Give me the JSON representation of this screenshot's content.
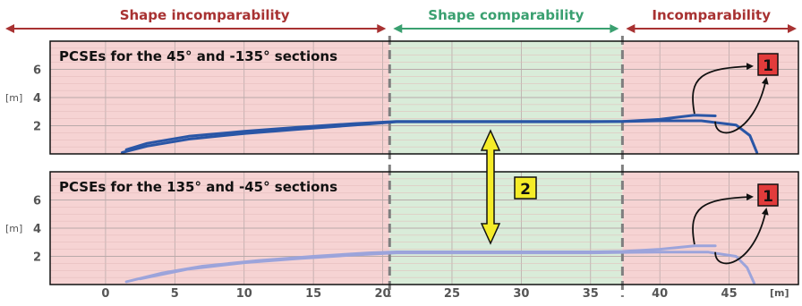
{
  "chart_data": {
    "type": "line",
    "x_unit": "[m]",
    "y_unit": "[m]",
    "xlim": [
      -4,
      50
    ],
    "ylim": [
      0,
      8
    ],
    "x_ticks": [
      0,
      5,
      10,
      15,
      20,
      25,
      30,
      35,
      40,
      45
    ],
    "y_ticks": [
      2,
      4,
      6
    ],
    "grid": true,
    "regions": [
      {
        "label": "Shape incomparability",
        "x_range": [
          -4,
          20.5
        ],
        "color": "#f6d3d3",
        "arrow_color": "#a83232"
      },
      {
        "label": "Shape comparability",
        "x_range": [
          20.5,
          37.3
        ],
        "color": "#d9ecd9",
        "arrow_color": "#3aa070"
      },
      {
        "label": "Incomparability",
        "x_range": [
          37.3,
          50
        ],
        "color": "#f6d3d3",
        "arrow_color": "#a83232"
      }
    ],
    "markers": [
      {
        "id": "marker-1-top",
        "label": "1",
        "color": "#e23b3b"
      },
      {
        "id": "marker-1-bottom",
        "label": "1",
        "color": "#e23b3b"
      },
      {
        "id": "marker-2",
        "label": "2",
        "color": "#f5ec28"
      }
    ],
    "panels": [
      {
        "title": "PCSEs for the 45° and -135° sections",
        "color": "#2a56a6",
        "series": [
          {
            "x": [
              1.5,
              3,
              6,
              10,
              14,
              18,
              21,
              25,
              30,
              35,
              37.3,
              40,
              43,
              45.5,
              46.5,
              47
            ],
            "y": [
              0.3,
              0.75,
              1.25,
              1.6,
              1.9,
              2.15,
              2.3,
              2.3,
              2.3,
              2.3,
              2.3,
              2.35,
              2.35,
              2.05,
              1.3,
              0.1
            ]
          },
          {
            "x": [
              1.2,
              3,
              6,
              10,
              14,
              18,
              21,
              25,
              30,
              35,
              37.3,
              40,
              42.5,
              44
            ],
            "y": [
              0.1,
              0.55,
              1.05,
              1.45,
              1.75,
              2.05,
              2.28,
              2.28,
              2.28,
              2.28,
              2.3,
              2.45,
              2.75,
              2.7
            ]
          }
        ]
      },
      {
        "title": "PCSEs for the 135° and -45° sections",
        "color": "#9ca4db",
        "series": [
          {
            "x": [
              2.5,
              6,
              10,
              14,
              18,
              21,
              25,
              30,
              35,
              37.3,
              40,
              43.5,
              45.5,
              46.3,
              46.8
            ],
            "y": [
              0.4,
              1.1,
              1.55,
              1.85,
              2.1,
              2.25,
              2.25,
              2.25,
              2.25,
              2.28,
              2.3,
              2.3,
              2.0,
              1.2,
              0.1
            ]
          },
          {
            "x": [
              1.5,
              4,
              7,
              11,
              15,
              19,
              21,
              25,
              30,
              35,
              37.3,
              40,
              42.5,
              44
            ],
            "y": [
              0.2,
              0.8,
              1.3,
              1.7,
              2.0,
              2.25,
              2.32,
              2.32,
              2.32,
              2.32,
              2.35,
              2.5,
              2.75,
              2.75
            ]
          }
        ]
      }
    ]
  }
}
